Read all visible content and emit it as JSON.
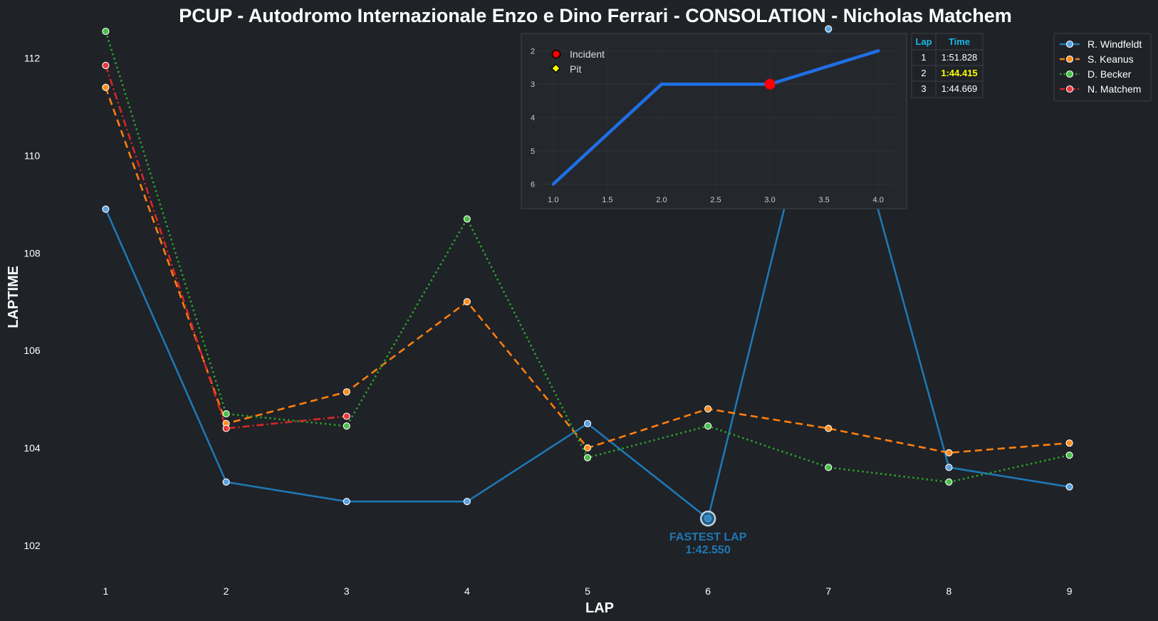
{
  "colors": {
    "background": "#1f2227",
    "text": "#ffffff",
    "inset_line": "#1f6fe5",
    "incident": "#ff0000",
    "pit": "#ffff00",
    "table_header": "#18b8e6",
    "table_best": "#ffff00"
  },
  "chart_data": [
    {
      "type": "line",
      "title": "PCUP - Autodromo Internazionale Enzo e Dino Ferrari - CONSOLATION - Nicholas Matchem",
      "xlabel": "LAP",
      "ylabel": "LAPTIME",
      "x_ticks": [
        1,
        2,
        3,
        4,
        5,
        6,
        7,
        8,
        9
      ],
      "y_ticks": [
        102,
        104,
        106,
        108,
        110,
        112
      ],
      "xlim": [
        0.3,
        9.7
      ],
      "ylim": [
        101.5,
        112.55
      ],
      "grid": false,
      "legend_position": "top-right",
      "series": [
        {
          "name": "R. Windfeldt",
          "color": "#1f77b4",
          "marker_color": "#5aa2e0",
          "dash": "solid",
          "x": [
            1,
            2,
            3,
            4,
            5,
            6,
            7,
            8,
            9
          ],
          "y": [
            108.9,
            103.3,
            102.9,
            102.9,
            104.5,
            102.55,
            112.6,
            103.6,
            103.2
          ]
        },
        {
          "name": "S. Keanus",
          "color": "#ff7f0e",
          "marker_color": "#ff8c1a",
          "dash": "dashed",
          "x": [
            1,
            2,
            3,
            4,
            5,
            6,
            7,
            8,
            9
          ],
          "y": [
            111.4,
            104.5,
            105.15,
            107.0,
            104.0,
            104.8,
            104.4,
            103.9,
            104.1
          ]
        },
        {
          "name": "D. Becker",
          "color": "#2ca02c",
          "marker_color": "#47c247",
          "dash": "dotted",
          "x": [
            1,
            2,
            3,
            4,
            5,
            6,
            7,
            8,
            9
          ],
          "y": [
            112.55,
            104.7,
            104.45,
            108.7,
            103.8,
            104.45,
            103.6,
            103.3,
            103.85
          ]
        },
        {
          "name": "N. Matchem",
          "color": "#d62728",
          "marker_color": "#e8383a",
          "dash": "dashdot",
          "x": [
            1,
            2,
            3
          ],
          "y": [
            111.85,
            104.4,
            104.65
          ]
        }
      ],
      "annotation": {
        "x": 6,
        "y": 102.55,
        "series": "R. Windfeldt",
        "line1": "FASTEST LAP",
        "line2": "1:42.550"
      }
    },
    {
      "type": "line",
      "title": "",
      "x_ticks": [
        "1.0",
        "1.5",
        "2.0",
        "2.5",
        "3.0",
        "3.5",
        "4.0"
      ],
      "y_ticks": [
        "2",
        "3",
        "4",
        "5",
        "6"
      ],
      "xlim": [
        0.85,
        4.15
      ],
      "ylim": [
        6.35,
        1.65
      ],
      "inverted_y": true,
      "grid": true,
      "series": [
        {
          "name": "",
          "x": [
            1,
            2,
            3,
            4
          ],
          "y": [
            6,
            3,
            3,
            2
          ]
        }
      ],
      "markers": [
        {
          "type": "incident",
          "x": 3,
          "y": 3
        }
      ],
      "legend": [
        {
          "label": "Incident",
          "marker": "circle",
          "color": "#ff0000"
        },
        {
          "label": "Pit",
          "marker": "diamond",
          "color": "#ffff00"
        }
      ]
    },
    {
      "type": "table",
      "columns": [
        "Lap",
        "Time"
      ],
      "rows": [
        {
          "lap": "1",
          "time": "1:51.828",
          "best": false
        },
        {
          "lap": "2",
          "time": "1:44.415",
          "best": true
        },
        {
          "lap": "3",
          "time": "1:44.669",
          "best": false
        }
      ]
    }
  ]
}
